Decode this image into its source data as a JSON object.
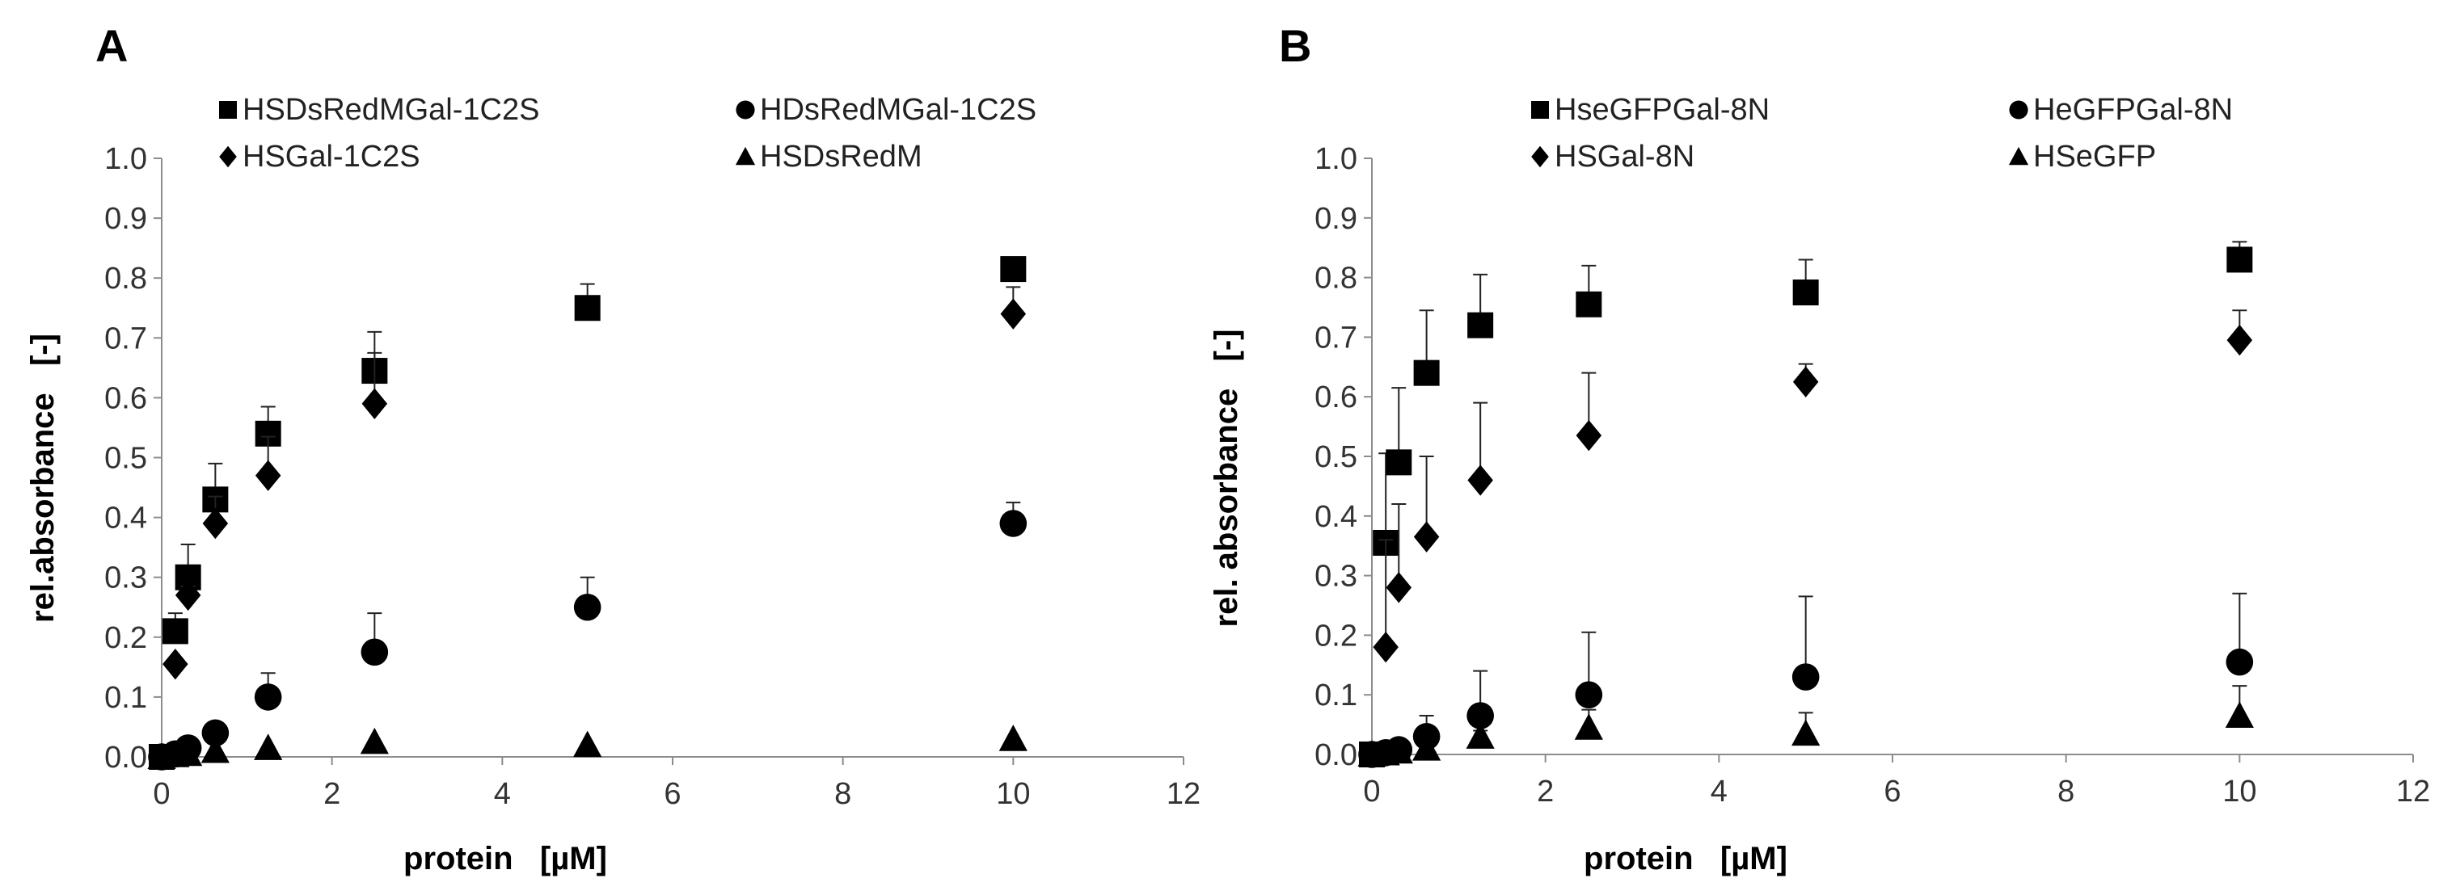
{
  "chart_data": [
    {
      "panel": "A",
      "type": "scatter",
      "xlabel": "protein   [µM]",
      "ylabel": "rel.absorbance   [-]",
      "xlim": [
        0,
        12
      ],
      "ylim": [
        0,
        1.0
      ],
      "xticks": [
        "0",
        "2",
        "4",
        "6",
        "8",
        "10",
        "12"
      ],
      "yticks": [
        "0.0",
        "0.1",
        "0.2",
        "0.3",
        "0.4",
        "0.5",
        "0.6",
        "0.7",
        "0.8",
        "0.9",
        "1.0"
      ],
      "grid": false,
      "legend_placement": "top",
      "series": [
        {
          "name": "HSDsRedMGal-1C2S",
          "marker": "square",
          "x": [
            0,
            0.16,
            0.31,
            0.63,
            1.25,
            2.5,
            5,
            10
          ],
          "y": [
            0,
            0.21,
            0.3,
            0.43,
            0.54,
            0.645,
            0.75,
            0.815
          ],
          "error": [
            0,
            0.03,
            0.055,
            0.06,
            0.045,
            0.065,
            0.04,
            0.01
          ]
        },
        {
          "name": "HDsRedMGal-1C2S",
          "marker": "circle",
          "x": [
            0,
            0.16,
            0.31,
            0.63,
            1.25,
            2.5,
            5,
            10
          ],
          "y": [
            0,
            0.005,
            0.015,
            0.04,
            0.1,
            0.175,
            0.25,
            0.39
          ],
          "error": [
            0,
            0.005,
            0.01,
            0.015,
            0.04,
            0.065,
            0.05,
            0.035
          ]
        },
        {
          "name": "HSGal-1C2S",
          "marker": "diamond",
          "x": [
            0.16,
            0.31,
            0.63,
            1.25,
            2.5,
            10
          ],
          "y": [
            0.155,
            0.27,
            0.39,
            0.47,
            0.59,
            0.74
          ],
          "error": [
            0,
            0.015,
            0.045,
            0.065,
            0.085,
            0.045
          ]
        },
        {
          "name": "HSDsRedM",
          "marker": "triangle",
          "x": [
            0,
            0.16,
            0.31,
            0.63,
            1.25,
            2.5,
            5,
            10
          ],
          "y": [
            0,
            0.003,
            0.005,
            0.01,
            0.015,
            0.025,
            0.02,
            0.03
          ],
          "error": [
            0,
            0,
            0,
            0,
            0,
            0,
            0,
            0
          ]
        }
      ]
    },
    {
      "panel": "B",
      "type": "scatter",
      "xlabel": "protein   [µM]",
      "ylabel": "rel. absorbance   [-]",
      "xlim": [
        0,
        12
      ],
      "ylim": [
        0,
        1.0
      ],
      "xticks": [
        "0",
        "2",
        "4",
        "6",
        "8",
        "10",
        "12"
      ],
      "yticks": [
        "0.0",
        "0.1",
        "0.2",
        "0.3",
        "0.4",
        "0.5",
        "0.6",
        "0.7",
        "0.8",
        "0.9",
        "1.0"
      ],
      "grid": false,
      "legend_placement": "top",
      "series": [
        {
          "name": "HseGFPGal-8N",
          "marker": "square",
          "x": [
            0,
            0.16,
            0.31,
            0.63,
            1.25,
            2.5,
            5,
            10
          ],
          "y": [
            0,
            0.355,
            0.49,
            0.64,
            0.72,
            0.755,
            0.775,
            0.83
          ],
          "error": [
            0,
            0.15,
            0.125,
            0.105,
            0.085,
            0.065,
            0.055,
            0.03
          ]
        },
        {
          "name": "HeGFPGal-8N",
          "marker": "circle",
          "x": [
            0,
            0.16,
            0.31,
            0.63,
            1.25,
            2.5,
            5,
            10
          ],
          "y": [
            0,
            0.003,
            0.008,
            0.03,
            0.065,
            0.1,
            0.13,
            0.155
          ],
          "error": [
            0,
            0,
            0.005,
            0.035,
            0.075,
            0.105,
            0.135,
            0.115
          ]
        },
        {
          "name": "HSGal-8N",
          "marker": "diamond",
          "x": [
            0.16,
            0.31,
            0.63,
            1.25,
            2.5,
            5,
            10
          ],
          "y": [
            0.18,
            0.28,
            0.365,
            0.46,
            0.535,
            0.625,
            0.695
          ],
          "error": [
            0.18,
            0.14,
            0.135,
            0.13,
            0.105,
            0.03,
            0.05
          ]
        },
        {
          "name": "HSeGFP",
          "marker": "triangle",
          "x": [
            0,
            0.16,
            0.31,
            0.63,
            1.25,
            2.5,
            5,
            10
          ],
          "y": [
            0,
            0.002,
            0.005,
            0.01,
            0.03,
            0.045,
            0.035,
            0.065
          ],
          "error": [
            0,
            0,
            0,
            0,
            0.01,
            0.03,
            0.035,
            0.05
          ]
        }
      ]
    }
  ]
}
